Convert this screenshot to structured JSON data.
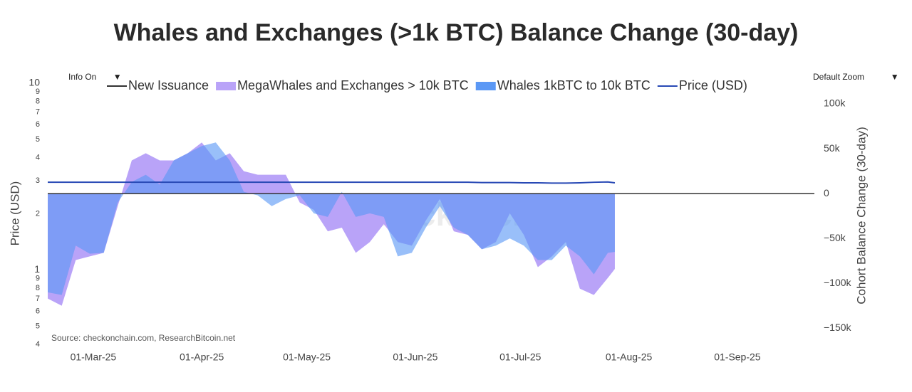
{
  "chart_data": {
    "type": "area",
    "title": "Whales and Exchanges (>1k BTC) Balance Change (30-day)",
    "source": "Source: checkonchain.com, ResearchBitcoin.net",
    "watermark": "checkonchain",
    "buttons": [
      "Info On",
      "Default Zoom"
    ],
    "ylabel": "Price (USD)",
    "y2label": "Cohort Balance Change (30-day)",
    "log_y": true,
    "x": [
      "2025-02-16",
      "2025-02-20",
      "2025-02-24",
      "2025-02-28",
      "2025-03-04",
      "2025-03-08",
      "2025-03-12",
      "2025-03-16",
      "2025-03-20",
      "2025-03-24",
      "2025-03-28",
      "2025-04-01",
      "2025-04-05",
      "2025-04-09",
      "2025-04-13",
      "2025-04-17",
      "2025-04-21",
      "2025-04-25",
      "2025-04-29",
      "2025-05-03",
      "2025-05-07",
      "2025-05-11",
      "2025-05-15",
      "2025-05-19",
      "2025-05-23",
      "2025-05-27",
      "2025-05-31",
      "2025-06-04",
      "2025-06-08",
      "2025-06-12",
      "2025-06-16",
      "2025-06-20",
      "2025-06-24",
      "2025-06-28",
      "2025-07-02",
      "2025-07-06",
      "2025-07-10",
      "2025-07-14",
      "2025-07-18",
      "2025-07-22",
      "2025-07-26",
      "2025-07-28"
    ],
    "series": [
      {
        "name": "New Issuance",
        "color": "#333333"
      },
      {
        "name": "MegaWhales and Exchanges > 10k BTC",
        "color": "#b9a3f8",
        "axis": "y2",
        "values": [
          -117000,
          -125000,
          -74000,
          -70000,
          -66000,
          -14000,
          37000,
          45000,
          37000,
          37000,
          45000,
          57000,
          37000,
          45000,
          25000,
          21000,
          21000,
          21000,
          -10000,
          -18000,
          -42000,
          -38000,
          -66000,
          -54000,
          -34000,
          -54000,
          -58000,
          -30000,
          -6000,
          -42000,
          -46000,
          -62000,
          -54000,
          -22000,
          -46000,
          -82000,
          -70000,
          -54000,
          -106000,
          -113000,
          -94000,
          -84000
        ]
      },
      {
        "name": "Whales 1kBTC to 10k BTC",
        "color": "#5b98f5",
        "axis": "y2",
        "values": [
          -110000,
          -113000,
          -58000,
          -67000,
          -66000,
          -10000,
          13000,
          21000,
          10000,
          37000,
          45000,
          53000,
          57000,
          37000,
          2000,
          -2000,
          -14000,
          -6000,
          -2000,
          -22000,
          -26000,
          2000,
          -26000,
          -22000,
          -26000,
          -70000,
          -66000,
          -38000,
          -14000,
          -38000,
          -46000,
          -62000,
          -58000,
          -50000,
          -58000,
          -74000,
          -74000,
          -58000,
          -70000,
          -90000,
          -66000,
          -65000
        ]
      },
      {
        "name": "Price (USD)",
        "color": "#2849b5",
        "line": true,
        "values": [
          2.95,
          2.95,
          2.95,
          2.95,
          2.95,
          2.95,
          2.95,
          2.95,
          2.95,
          2.95,
          2.95,
          2.95,
          2.95,
          2.95,
          2.95,
          2.95,
          2.95,
          2.95,
          2.95,
          2.95,
          2.95,
          2.95,
          2.95,
          2.95,
          2.95,
          2.95,
          2.95,
          2.95,
          2.95,
          2.95,
          2.95,
          2.94,
          2.94,
          2.94,
          2.93,
          2.93,
          2.92,
          2.92,
          2.93,
          2.95,
          2.96,
          2.93
        ]
      }
    ],
    "xlim": [
      "2025-02-16",
      "2025-09-23"
    ],
    "xticks": [
      {
        "value": "2025-03-01",
        "label": "01-Mar-25"
      },
      {
        "value": "2025-04-01",
        "label": "01-Apr-25"
      },
      {
        "value": "2025-05-01",
        "label": "01-May-25"
      },
      {
        "value": "2025-06-01",
        "label": "01-Jun-25"
      },
      {
        "value": "2025-07-01",
        "label": "01-Jul-25"
      },
      {
        "value": "2025-08-01",
        "label": "01-Aug-25"
      },
      {
        "value": "2025-09-01",
        "label": "01-Sep-25"
      }
    ],
    "ylim": [
      0.4,
      10
    ],
    "yticks": [
      {
        "value": 0.4,
        "label": "4"
      },
      {
        "value": 0.5,
        "label": "5"
      },
      {
        "value": 0.6,
        "label": "6"
      },
      {
        "value": 0.7,
        "label": "7"
      },
      {
        "value": 0.8,
        "label": "8"
      },
      {
        "value": 0.9,
        "label": "9"
      },
      1,
      2,
      3,
      4,
      5,
      6,
      7,
      8,
      9,
      10
    ],
    "y2lim": [
      -168000,
      123000
    ],
    "y2ticks": [
      {
        "value": 100000,
        "label": "100k"
      },
      {
        "value": 50000,
        "label": "50k"
      },
      0,
      {
        "value": -50000,
        "label": "−50k"
      },
      {
        "value": -100000,
        "label": "−100k"
      },
      {
        "value": -150000,
        "label": "−150k"
      }
    ]
  }
}
